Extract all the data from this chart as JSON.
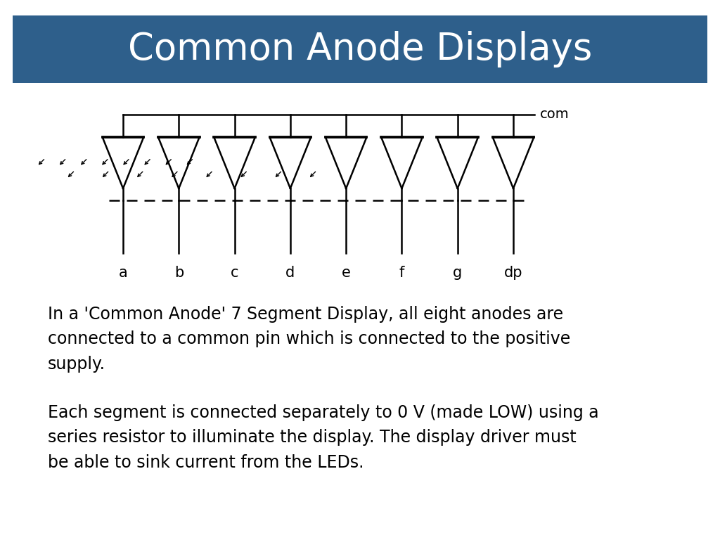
{
  "title": "Common Anode Displays",
  "title_bg_color": "#2e5f8b",
  "title_text_color": "#ffffff",
  "bg_color": "#ffffff",
  "labels": [
    "a",
    "b",
    "c",
    "d",
    "e",
    "f",
    "g",
    "dp"
  ],
  "paragraph1": "In a 'Common Anode' 7 Segment Display, all eight anodes are\nconnected to a common pin which is connected to the positive\nsupply.",
  "paragraph2": "Each segment is connected separately to 0 V (made LOW) using a\nseries resistor to illuminate the display. The display driver must\nbe able to sink current from the LEDs.",
  "text_color": "#000000",
  "com_label": "com",
  "diagram_line_color": "#000000",
  "lw": 1.8
}
